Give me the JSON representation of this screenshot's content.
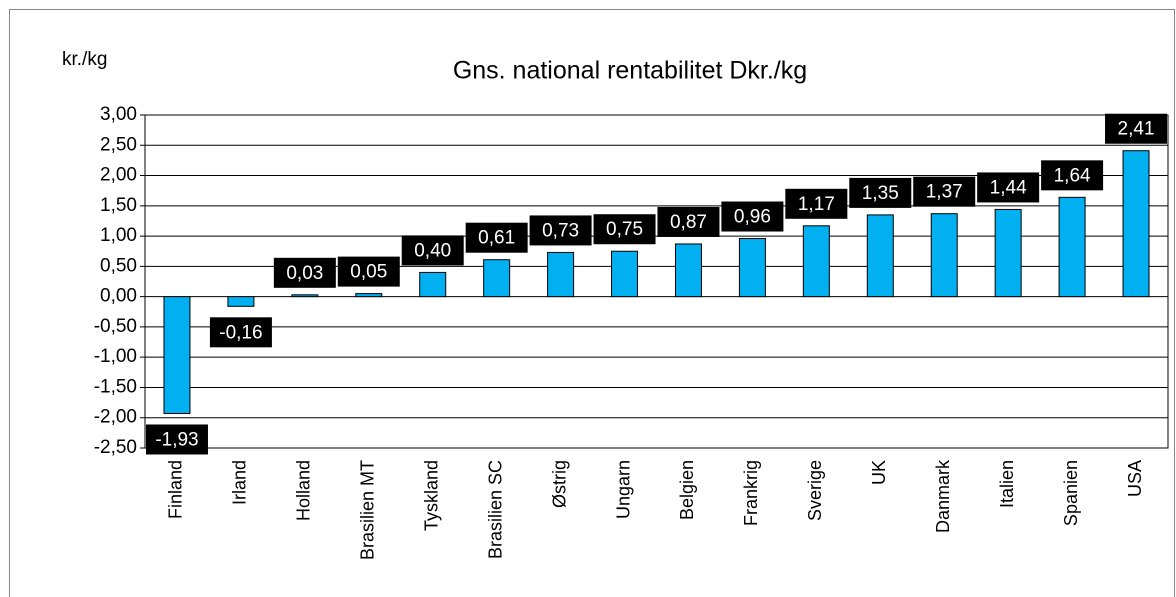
{
  "chart_data": {
    "type": "bar",
    "title": "Gns. national rentabilitet Dkr./kg",
    "y_axis_label": "kr./kg",
    "categories": [
      "Finland",
      "Irland",
      "Holland",
      "Brasilien MT",
      "Tyskland",
      "Brasilien SC",
      "Østrig",
      "Ungarn",
      "Belgien",
      "Frankrig",
      "Sverige",
      "UK",
      "Danmark",
      "Italien",
      "Spanien",
      "USA"
    ],
    "values": [
      -1.93,
      -0.16,
      0.03,
      0.05,
      0.4,
      0.61,
      0.73,
      0.75,
      0.87,
      0.96,
      1.17,
      1.35,
      1.37,
      1.44,
      1.64,
      2.41
    ],
    "value_labels": [
      "-1,93",
      "-0,16",
      "0,03",
      "0,05",
      "0,40",
      "0,61",
      "0,73",
      "0,75",
      "0,87",
      "0,96",
      "1,17",
      "1,35",
      "1,37",
      "1,44",
      "1,64",
      "2,41"
    ],
    "color": "#00b0f0",
    "ylim": [
      -2.5,
      3
    ],
    "yticks": [
      {
        "value": -2.5,
        "label": "-2,50"
      },
      {
        "value": -2,
        "label": "-2,00"
      },
      {
        "value": -1.5,
        "label": "-1,50"
      },
      {
        "value": -1,
        "label": "-1,00"
      },
      {
        "value": -0.5,
        "label": "-0,50"
      },
      {
        "value": 0,
        "label": "0,00"
      },
      {
        "value": 0.5,
        "label": "0,50"
      },
      {
        "value": 1,
        "label": "1,00"
      },
      {
        "value": 1.5,
        "label": "1,50"
      },
      {
        "value": 2,
        "label": "2,00"
      },
      {
        "value": 2.5,
        "label": "2,50"
      },
      {
        "value": 3,
        "label": "3,00"
      }
    ],
    "grid": true
  }
}
